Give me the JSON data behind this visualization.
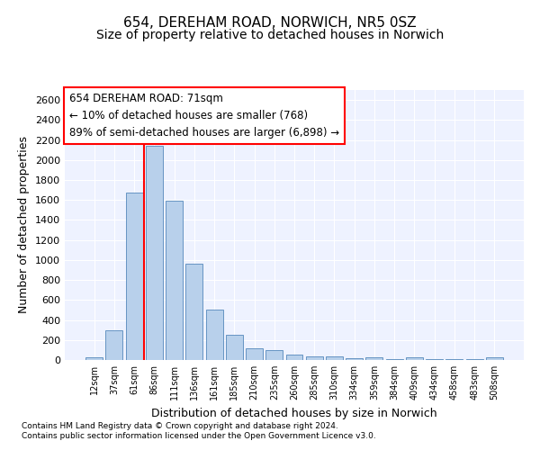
{
  "title_line1": "654, DEREHAM ROAD, NORWICH, NR5 0SZ",
  "title_line2": "Size of property relative to detached houses in Norwich",
  "xlabel": "Distribution of detached houses by size in Norwich",
  "ylabel": "Number of detached properties",
  "categories": [
    "12sqm",
    "37sqm",
    "61sqm",
    "86sqm",
    "111sqm",
    "136sqm",
    "161sqm",
    "185sqm",
    "210sqm",
    "235sqm",
    "260sqm",
    "285sqm",
    "310sqm",
    "334sqm",
    "359sqm",
    "384sqm",
    "409sqm",
    "434sqm",
    "458sqm",
    "483sqm",
    "508sqm"
  ],
  "values": [
    25,
    300,
    1670,
    2140,
    1590,
    960,
    500,
    250,
    120,
    100,
    50,
    40,
    35,
    20,
    30,
    5,
    25,
    5,
    5,
    5,
    25
  ],
  "bar_color": "#b8d0eb",
  "bar_edge_color": "#5588bb",
  "annotation_text": "654 DEREHAM ROAD: 71sqm\n← 10% of detached houses are smaller (768)\n89% of semi-detached houses are larger (6,898) →",
  "annotation_box_color": "white",
  "annotation_box_edgecolor": "red",
  "vline_color": "red",
  "vline_x_index": 2.5,
  "ylim": [
    0,
    2700
  ],
  "yticks": [
    0,
    200,
    400,
    600,
    800,
    1000,
    1200,
    1400,
    1600,
    1800,
    2000,
    2200,
    2400,
    2600
  ],
  "background_color": "#eef2ff",
  "grid_color": "white",
  "footer1": "Contains HM Land Registry data © Crown copyright and database right 2024.",
  "footer2": "Contains public sector information licensed under the Open Government Licence v3.0.",
  "title_fontsize": 11,
  "subtitle_fontsize": 10,
  "xlabel_fontsize": 9,
  "ylabel_fontsize": 9,
  "annot_fontsize": 8.5
}
